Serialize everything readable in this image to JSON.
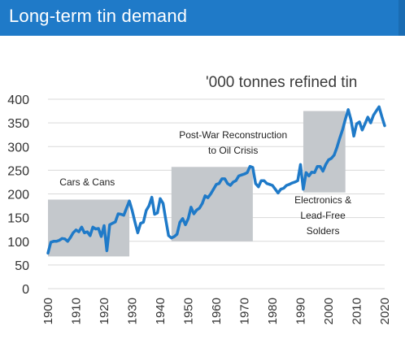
{
  "header": {
    "title": "Long-term tin demand"
  },
  "chart_data": {
    "type": "line",
    "title": "Long-term tin demand",
    "units_label": "'000 tonnes refined tin",
    "xlabel": "",
    "ylabel": "",
    "xlim": [
      1900,
      2020
    ],
    "ylim": [
      0,
      400
    ],
    "x_ticks": [
      1900,
      1910,
      1920,
      1930,
      1940,
      1950,
      1960,
      1970,
      1980,
      1990,
      2000,
      2010,
      2020
    ],
    "y_ticks": [
      0,
      50,
      100,
      150,
      200,
      250,
      300,
      350,
      400
    ],
    "grid": "horizontal",
    "line_color": "#1f7ac8",
    "band_color": "#c4c8cc",
    "bands": [
      {
        "label_lines": [
          "Cars & Cans"
        ],
        "x_start": 1900,
        "x_end": 1929,
        "y_low": 68,
        "y_high": 188,
        "label_x": 1914,
        "label_y": 218
      },
      {
        "label_lines": [
          "Post-War Reconstruction",
          "to Oil Crisis"
        ],
        "x_start": 1944,
        "x_end": 1973,
        "y_low": 100,
        "y_high": 257,
        "label_x": 1966,
        "label_y": 318
      },
      {
        "label_lines": [
          "Electronics &",
          "Lead-Free",
          "Solders"
        ],
        "x_start": 1991,
        "x_end": 2006,
        "y_low": 203,
        "y_high": 375,
        "label_x": 1998,
        "label_y": 180
      }
    ],
    "series": [
      {
        "x": [
          1900,
          1901,
          1902,
          1903,
          1904,
          1905,
          1906,
          1907,
          1908,
          1909,
          1910,
          1911,
          1912,
          1913,
          1914,
          1915,
          1916,
          1917,
          1918,
          1919,
          1920,
          1921,
          1922,
          1923,
          1924,
          1925,
          1926,
          1927,
          1928,
          1929,
          1930,
          1931,
          1932,
          1933,
          1934,
          1935,
          1936,
          1937,
          1938,
          1939,
          1940,
          1941,
          1942,
          1943,
          1944,
          1945,
          1946,
          1947,
          1948,
          1949,
          1950,
          1951,
          1952,
          1953,
          1954,
          1955,
          1956,
          1957,
          1958,
          1959,
          1960,
          1961,
          1962,
          1963,
          1964,
          1965,
          1966,
          1967,
          1968,
          1969,
          1970,
          1971,
          1972,
          1973,
          1974,
          1975,
          1976,
          1977,
          1978,
          1979,
          1980,
          1981,
          1982,
          1983,
          1984,
          1985,
          1986,
          1987,
          1988,
          1989,
          1990,
          1991,
          1992,
          1993,
          1994,
          1995,
          1996,
          1997,
          1998,
          1999,
          2000,
          2001,
          2002,
          2003,
          2004,
          2005,
          2006,
          2007,
          2008,
          2009,
          2010,
          2011,
          2012,
          2013,
          2014,
          2015,
          2016,
          2017,
          2018,
          2019,
          2020
        ],
        "values": [
          75,
          98,
          100,
          100,
          102,
          106,
          105,
          100,
          108,
          118,
          124,
          120,
          130,
          118,
          120,
          112,
          130,
          126,
          127,
          110,
          133,
          80,
          135,
          138,
          141,
          158,
          157,
          155,
          170,
          185,
          165,
          140,
          118,
          138,
          140,
          165,
          175,
          193,
          157,
          160,
          190,
          180,
          145,
          112,
          107,
          110,
          115,
          140,
          148,
          135,
          148,
          172,
          158,
          166,
          170,
          180,
          196,
          192,
          200,
          210,
          220,
          222,
          232,
          232,
          222,
          218,
          225,
          228,
          238,
          240,
          242,
          245,
          258,
          256,
          222,
          215,
          228,
          228,
          222,
          220,
          218,
          210,
          202,
          210,
          212,
          218,
          220,
          223,
          225,
          228,
          262,
          210,
          245,
          238,
          246,
          245,
          258,
          258,
          248,
          262,
          272,
          275,
          282,
          298,
          318,
          336,
          358,
          378,
          356,
          322,
          348,
          352,
          335,
          348,
          362,
          350,
          366,
          375,
          384,
          363,
          344
        ]
      }
    ]
  }
}
